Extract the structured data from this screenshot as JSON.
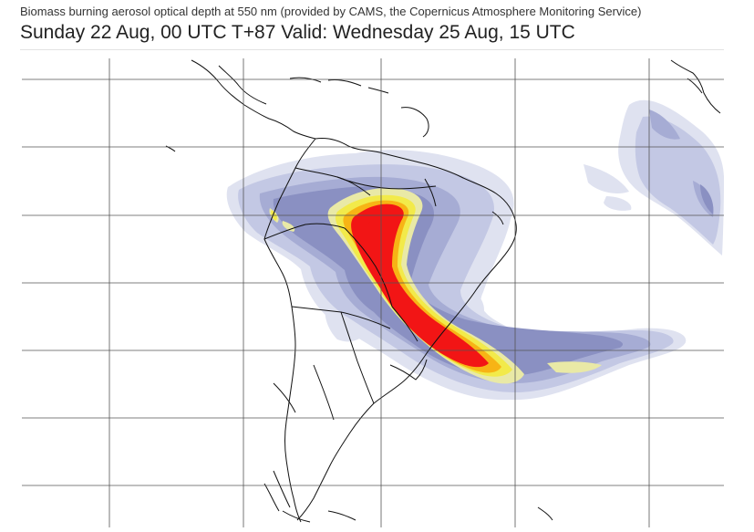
{
  "header": {
    "subtitle": "Biomass burning aerosol optical depth at 550 nm (provided by CAMS, the Copernicus Atmosphere Monitoring Service)",
    "title": "Sunday 22 Aug, 00 UTC T+87 Valid: Wednesday 25 Aug, 15 UTC"
  },
  "map": {
    "region": "South America",
    "colors": {
      "lightest": "#dfe2f0",
      "light": "#c3c8e4",
      "medium": "#a6acd4",
      "darker": "#8a90c2",
      "yellow_pale": "#e9e9a6",
      "yellow": "#f2ea4a",
      "orange": "#f7b415",
      "red": "#f21515",
      "coastline": "#111111",
      "grid": "#555555"
    }
  }
}
